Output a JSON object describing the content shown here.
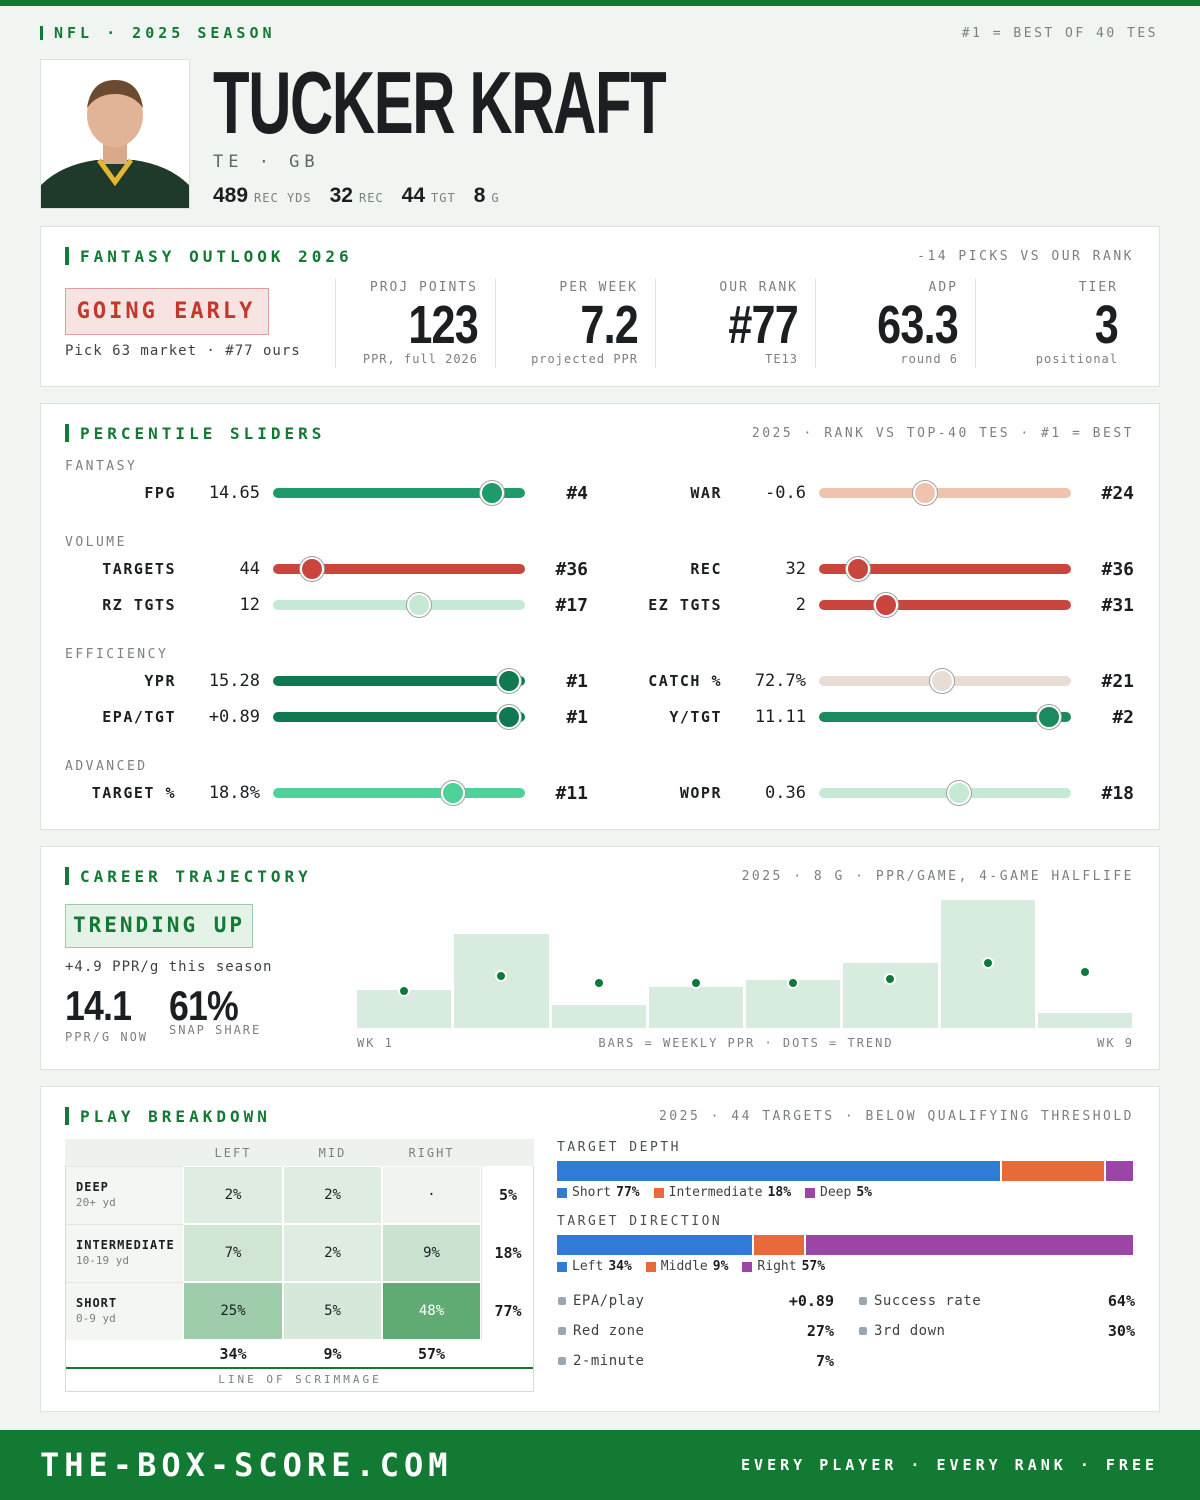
{
  "header": {
    "league": "NFL · 2025 SEASON",
    "note": "#1 = BEST OF 40 TES",
    "name": "TUCKER KRAFT",
    "position": "TE · GB",
    "stats": [
      {
        "value": 489,
        "unit": "REC YDS"
      },
      {
        "value": 32,
        "unit": "REC"
      },
      {
        "value": 44,
        "unit": "TGT"
      },
      {
        "value": 8,
        "unit": "G"
      }
    ]
  },
  "outlook": {
    "title": "FANTASY OUTLOOK 2026",
    "note": "-14 PICKS VS OUR RANK",
    "badge": "GOING EARLY",
    "badge_sub": "Pick 63 market · #77 ours",
    "metrics": [
      {
        "label": "PROJ POINTS",
        "value": 123,
        "sub": "PPR, full 2026"
      },
      {
        "label": "PER WEEK",
        "value": 7.2,
        "sub": "projected PPR"
      },
      {
        "label": "OUR RANK",
        "value": "#77",
        "sub": "TE13"
      },
      {
        "label": "ADP",
        "value": 63.3,
        "sub": "round 6"
      },
      {
        "label": "TIER",
        "value": 3,
        "sub": "positional"
      }
    ]
  },
  "sliders": {
    "title": "PERCENTILE SLIDERS",
    "note": "2025 · RANK VS TOP-40 TES · #1 = BEST",
    "rank_scale": [
      40,
      1
    ],
    "groups": [
      {
        "name": "FANTASY",
        "rows": [
          [
            {
              "label": "FPG",
              "value": "14.65",
              "rank": {
                "value": 4,
                "label": "#4"
              },
              "color": "#1e9a6b"
            },
            {
              "label": "WAR",
              "value": "-0.6",
              "rank": {
                "value": 24,
                "label": "#24"
              },
              "color": "#efc3ad"
            }
          ]
        ]
      },
      {
        "name": "VOLUME",
        "rows": [
          [
            {
              "label": "TARGETS",
              "value": "44",
              "rank": {
                "value": 36,
                "label": "#36"
              },
              "color": "#c9463f"
            },
            {
              "label": "REC",
              "value": "32",
              "rank": {
                "value": 36,
                "label": "#36"
              },
              "color": "#c9463f"
            }
          ],
          [
            {
              "label": "RZ TGTS",
              "value": "12",
              "rank": {
                "value": 17,
                "label": "#17"
              },
              "color": "#c6e9d6"
            },
            {
              "label": "EZ TGTS",
              "value": "2",
              "rank": {
                "value": 31,
                "label": "#31"
              },
              "color": "#c9463f"
            }
          ]
        ]
      },
      {
        "name": "EFFICIENCY",
        "rows": [
          [
            {
              "label": "YPR",
              "value": "15.28",
              "rank": {
                "value": 1,
                "label": "#1"
              },
              "color": "#0f7a52"
            },
            {
              "label": "CATCH %",
              "value": "72.7%",
              "rank": {
                "value": 21,
                "label": "#21"
              },
              "color": "#e8ddd5"
            }
          ],
          [
            {
              "label": "EPA/TGT",
              "value": "+0.89",
              "rank": {
                "value": 1,
                "label": "#1"
              },
              "color": "#0f7a52"
            },
            {
              "label": "Y/TGT",
              "value": "11.11",
              "rank": {
                "value": 2,
                "label": "#2"
              },
              "color": "#1b8a5e"
            }
          ]
        ]
      },
      {
        "name": "ADVANCED",
        "rows": [
          [
            {
              "label": "TARGET %",
              "value": "18.8%",
              "rank": {
                "value": 11,
                "label": "#11"
              },
              "color": "#4fd19a"
            },
            {
              "label": "WOPR",
              "value": "0.36",
              "rank": {
                "value": 18,
                "label": "#18"
              },
              "color": "#c6e9d6"
            }
          ]
        ]
      }
    ]
  },
  "career": {
    "title": "CAREER TRAJECTORY",
    "note": "2025 · 8 G · PPR/GAME, 4-GAME HALFLIFE",
    "badge": "TRENDING UP",
    "change": "+4.9 PPR/g this season",
    "big": [
      {
        "value": "14.1",
        "label": "PPR/G NOW"
      },
      {
        "value": "61%",
        "label": "SNAP SHARE"
      }
    ],
    "chart": {
      "type": "bar",
      "weekly_ppr": [
        9.5,
        23.6,
        5.7,
        10.2,
        11.9,
        16.2,
        32.1,
        3.7
      ],
      "trend": [
        9.2,
        12.9,
        11.2,
        11.2,
        11.2,
        12.2,
        16.2,
        13.9
      ],
      "ylim": [
        0,
        32.5
      ],
      "bar_color": "#d8ebdf",
      "dot_color": "#0d7a3a",
      "x_start": "WK 1",
      "x_end": "WK 9",
      "caption": "BARS = WEEKLY PPR · DOTS = TREND"
    }
  },
  "breakdown": {
    "title": "PLAY BREAKDOWN",
    "note": "2025 · 44 TARGETS · BELOW QUALIFYING THRESHOLD",
    "grid": {
      "columns": [
        "LEFT",
        "MID",
        "RIGHT"
      ],
      "rows": [
        {
          "name": "DEEP",
          "sub": "20+ yd",
          "cells": [
            {
              "value": 2,
              "label": "2%"
            },
            {
              "value": 2,
              "label": "2%"
            },
            {
              "value": null,
              "label": "·"
            }
          ],
          "total": "5%"
        },
        {
          "name": "INTERMEDIATE",
          "sub": "10-19 yd",
          "cells": [
            {
              "value": 7,
              "label": "7%"
            },
            {
              "value": 2,
              "label": "2%"
            },
            {
              "value": 9,
              "label": "9%"
            }
          ],
          "total": "18%"
        },
        {
          "name": "SHORT",
          "sub": "0-9 yd",
          "cells": [
            {
              "value": 25,
              "label": "25%"
            },
            {
              "value": 5,
              "label": "5%"
            },
            {
              "value": 48,
              "label": "48%"
            }
          ],
          "total": "77%"
        }
      ],
      "col_totals": [
        "34%",
        "9%",
        "57%"
      ],
      "caption": "LINE OF SCRIMMAGE"
    },
    "depth": {
      "title": "TARGET DEPTH",
      "segments": [
        {
          "name": "Short",
          "value": 77,
          "label": "77%",
          "color": "#2f7bd6"
        },
        {
          "name": "Intermediate",
          "value": 18,
          "label": "18%",
          "color": "#e8693a"
        },
        {
          "name": "Deep",
          "value": 5,
          "label": "5%",
          "color": "#9b45a6"
        }
      ]
    },
    "direction": {
      "title": "TARGET DIRECTION",
      "segments": [
        {
          "name": "Left",
          "value": 34,
          "label": "34%",
          "color": "#2f7bd6"
        },
        {
          "name": "Middle",
          "value": 9,
          "label": "9%",
          "color": "#e8693a"
        },
        {
          "name": "Right",
          "value": 57,
          "label": "57%",
          "color": "#9b45a6"
        }
      ]
    },
    "stats": [
      [
        {
          "name": "EPA/play",
          "value": "+0.89"
        },
        {
          "name": "Red zone",
          "value": "27%"
        },
        {
          "name": "2-minute",
          "value": "7%"
        }
      ],
      [
        {
          "name": "Success rate",
          "value": "64%"
        },
        {
          "name": "3rd down",
          "value": "30%"
        }
      ]
    ]
  },
  "footer": {
    "site": "THE-BOX-SCORE.COM",
    "tagline": "EVERY PLAYER · EVERY RANK · FREE"
  }
}
